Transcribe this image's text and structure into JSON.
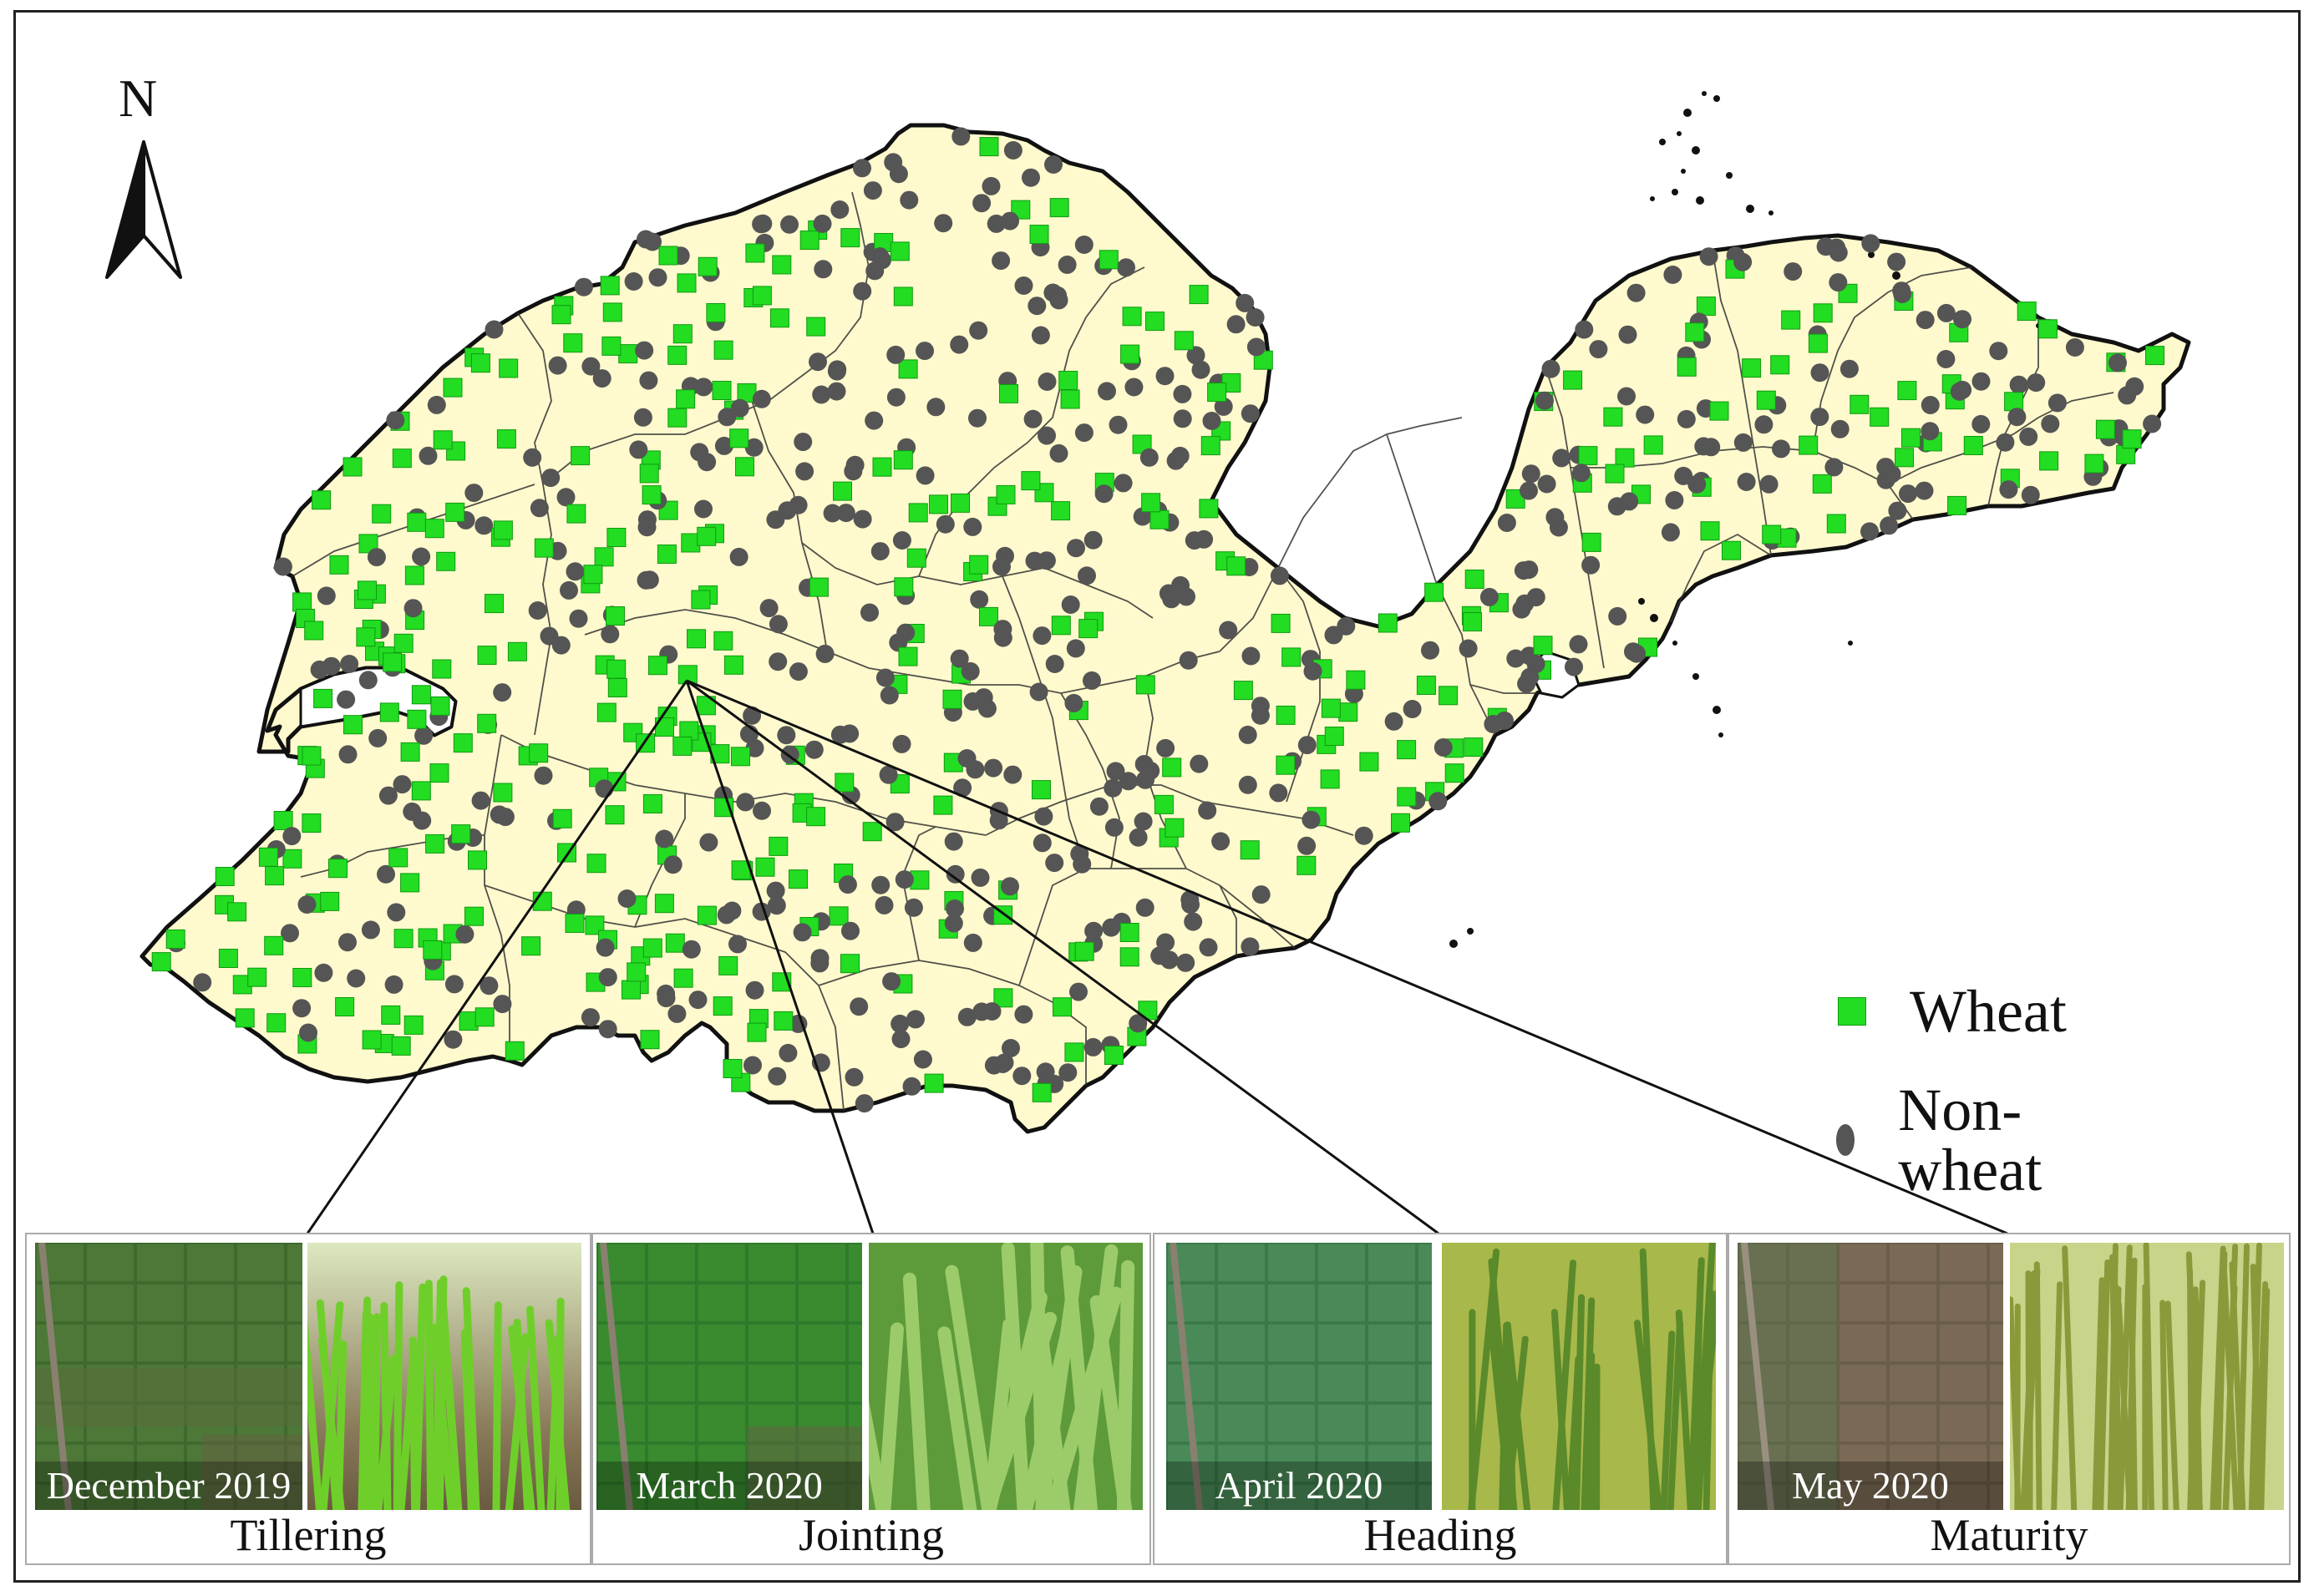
{
  "compass": {
    "label": "N",
    "icon": "north-arrow-icon"
  },
  "legend": {
    "items": [
      {
        "label": "Wheat",
        "symbol": "square",
        "color": "#22dd22"
      },
      {
        "label": "Non-wheat",
        "symbol": "circle",
        "color": "#555555"
      }
    ]
  },
  "colors": {
    "land": "#fffacd",
    "boundary": "#111111",
    "wheat": "#22dd22",
    "non_wheat": "#555555"
  },
  "panels": [
    {
      "stage": "Tillering",
      "date": "December 2019",
      "photo_icon": "wheat-tillering-photo"
    },
    {
      "stage": "Jointing",
      "date": "March 2020",
      "photo_icon": "wheat-jointing-photo"
    },
    {
      "stage": "Heading",
      "date": "April 2020",
      "photo_icon": "wheat-heading-photo"
    },
    {
      "stage": "Maturity",
      "date": "May 2020",
      "photo_icon": "wheat-maturity-photo"
    }
  ]
}
